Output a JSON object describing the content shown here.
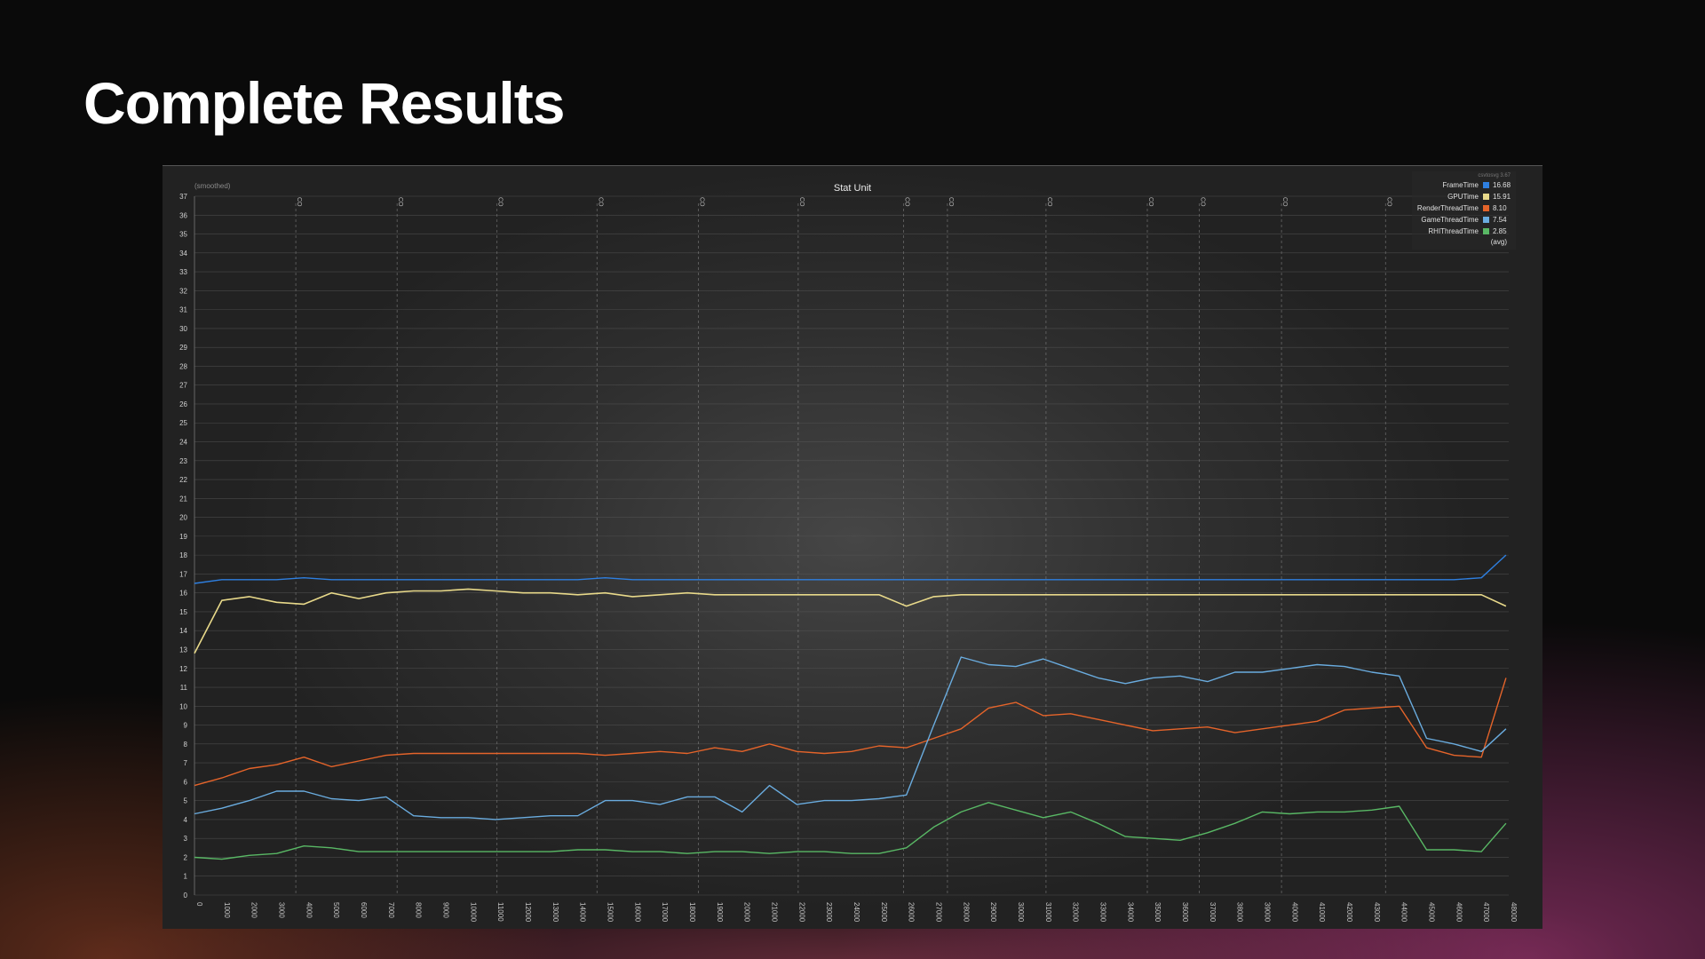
{
  "slide": {
    "title": "Complete Results"
  },
  "colors": {
    "FrameTime": "#2e7fe0",
    "GPUTime": "#e8d98a",
    "RenderThreadTime": "#e5642a",
    "GameThreadTime": "#6aacdf",
    "RHIThreadTime": "#59b865"
  },
  "chart_data": {
    "type": "line",
    "title": "Stat Unit",
    "subtitle": "(smoothed)",
    "xlabel": "",
    "ylabel": "",
    "grid": true,
    "ylim": [
      0,
      37
    ],
    "xlim": [
      0,
      48000
    ],
    "y_ticks": [
      0,
      1,
      2,
      3,
      4,
      5,
      6,
      7,
      8,
      9,
      10,
      11,
      12,
      13,
      14,
      15,
      16,
      17,
      18,
      19,
      20,
      21,
      22,
      23,
      24,
      25,
      26,
      27,
      28,
      29,
      30,
      31,
      32,
      33,
      34,
      35,
      36,
      37
    ],
    "x_ticks": [
      0,
      1000,
      2000,
      3000,
      4000,
      5000,
      6000,
      7000,
      8000,
      9000,
      10000,
      11000,
      12000,
      13000,
      14000,
      15000,
      16000,
      17000,
      18000,
      19000,
      20000,
      21000,
      22000,
      23000,
      24000,
      25000,
      26000,
      27000,
      28000,
      29000,
      30000,
      31000,
      32000,
      33000,
      34000,
      35000,
      36000,
      37000,
      38000,
      39000,
      40000,
      41000,
      42000,
      43000,
      44000,
      45000,
      46000,
      47000,
      48000
    ],
    "event_markers": [
      {
        "x": 3700,
        "label": "CO"
      },
      {
        "x": 7400,
        "label": "CO"
      },
      {
        "x": 11050,
        "label": "CO"
      },
      {
        "x": 14700,
        "label": "CO"
      },
      {
        "x": 18400,
        "label": "CO"
      },
      {
        "x": 22050,
        "label": "CO"
      },
      {
        "x": 25900,
        "label": "CO"
      },
      {
        "x": 27500,
        "label": "CO"
      },
      {
        "x": 31100,
        "label": "CO"
      },
      {
        "x": 34800,
        "label": "CO"
      },
      {
        "x": 36700,
        "label": "CO"
      },
      {
        "x": 39700,
        "label": "CO"
      },
      {
        "x": 43500,
        "label": "CO"
      }
    ],
    "legend": {
      "header": "csvtosvg 3.67",
      "footer": "(avg)",
      "position": "top-right"
    },
    "x": [
      0,
      1000,
      2000,
      3000,
      4000,
      5000,
      6000,
      7000,
      8000,
      9000,
      10000,
      11000,
      12000,
      13000,
      14000,
      15000,
      16000,
      17000,
      18000,
      19000,
      20000,
      21000,
      22000,
      23000,
      24000,
      25000,
      26000,
      27000,
      28000,
      29000,
      30000,
      31000,
      32000,
      33000,
      34000,
      35000,
      36000,
      37000,
      38000,
      39000,
      40000,
      41000,
      42000,
      43000,
      44000,
      45000,
      46000,
      47000,
      47900
    ],
    "series": [
      {
        "name": "FrameTime",
        "avg": "16.68",
        "values": [
          16.5,
          16.7,
          16.7,
          16.7,
          16.8,
          16.7,
          16.7,
          16.7,
          16.7,
          16.7,
          16.7,
          16.7,
          16.7,
          16.7,
          16.7,
          16.8,
          16.7,
          16.7,
          16.7,
          16.7,
          16.7,
          16.7,
          16.7,
          16.7,
          16.7,
          16.7,
          16.7,
          16.7,
          16.7,
          16.7,
          16.7,
          16.7,
          16.7,
          16.7,
          16.7,
          16.7,
          16.7,
          16.7,
          16.7,
          16.7,
          16.7,
          16.7,
          16.7,
          16.7,
          16.7,
          16.7,
          16.7,
          16.8,
          18.0
        ]
      },
      {
        "name": "GPUTime",
        "avg": "15.91",
        "values": [
          12.8,
          15.6,
          15.8,
          15.5,
          15.4,
          16.0,
          15.7,
          16.0,
          16.1,
          16.1,
          16.2,
          16.1,
          16.0,
          16.0,
          15.9,
          16.0,
          15.8,
          15.9,
          16.0,
          15.9,
          15.9,
          15.9,
          15.9,
          15.9,
          15.9,
          15.9,
          15.3,
          15.8,
          15.9,
          15.9,
          15.9,
          15.9,
          15.9,
          15.9,
          15.9,
          15.9,
          15.9,
          15.9,
          15.9,
          15.9,
          15.9,
          15.9,
          15.9,
          15.9,
          15.9,
          15.9,
          15.9,
          15.9,
          15.3
        ]
      },
      {
        "name": "RenderThreadTime",
        "avg": "8.10",
        "values": [
          5.8,
          6.2,
          6.7,
          6.9,
          7.3,
          6.8,
          7.1,
          7.4,
          7.5,
          7.5,
          7.5,
          7.5,
          7.5,
          7.5,
          7.5,
          7.4,
          7.5,
          7.6,
          7.5,
          7.8,
          7.6,
          8.0,
          7.6,
          7.5,
          7.6,
          7.9,
          7.8,
          8.3,
          8.8,
          9.9,
          10.2,
          9.5,
          9.6,
          9.3,
          9.0,
          8.7,
          8.8,
          8.9,
          8.6,
          8.8,
          9.0,
          9.2,
          9.8,
          9.9,
          10.0,
          7.8,
          7.4,
          7.3,
          11.5
        ]
      },
      {
        "name": "GameThreadTime",
        "avg": "7.54",
        "values": [
          4.3,
          4.6,
          5.0,
          5.5,
          5.5,
          5.1,
          5.0,
          5.2,
          4.2,
          4.1,
          4.1,
          4.0,
          4.1,
          4.2,
          4.2,
          5.0,
          5.0,
          4.8,
          5.2,
          5.2,
          4.4,
          5.8,
          4.8,
          5.0,
          5.0,
          5.1,
          5.3,
          9.0,
          12.6,
          12.2,
          12.1,
          12.5,
          12.0,
          11.5,
          11.2,
          11.5,
          11.6,
          11.3,
          11.8,
          11.8,
          12.0,
          12.2,
          12.1,
          11.8,
          11.6,
          8.3,
          8.0,
          7.6,
          8.8
        ]
      },
      {
        "name": "RHIThreadTime",
        "avg": "2.85",
        "values": [
          2.0,
          1.9,
          2.1,
          2.2,
          2.6,
          2.5,
          2.3,
          2.3,
          2.3,
          2.3,
          2.3,
          2.3,
          2.3,
          2.3,
          2.4,
          2.4,
          2.3,
          2.3,
          2.2,
          2.3,
          2.3,
          2.2,
          2.3,
          2.3,
          2.2,
          2.2,
          2.5,
          3.6,
          4.4,
          4.9,
          4.5,
          4.1,
          4.4,
          3.8,
          3.1,
          3.0,
          2.9,
          3.3,
          3.8,
          4.4,
          4.3,
          4.4,
          4.4,
          4.5,
          4.7,
          2.4,
          2.4,
          2.3,
          3.8
        ]
      }
    ]
  }
}
